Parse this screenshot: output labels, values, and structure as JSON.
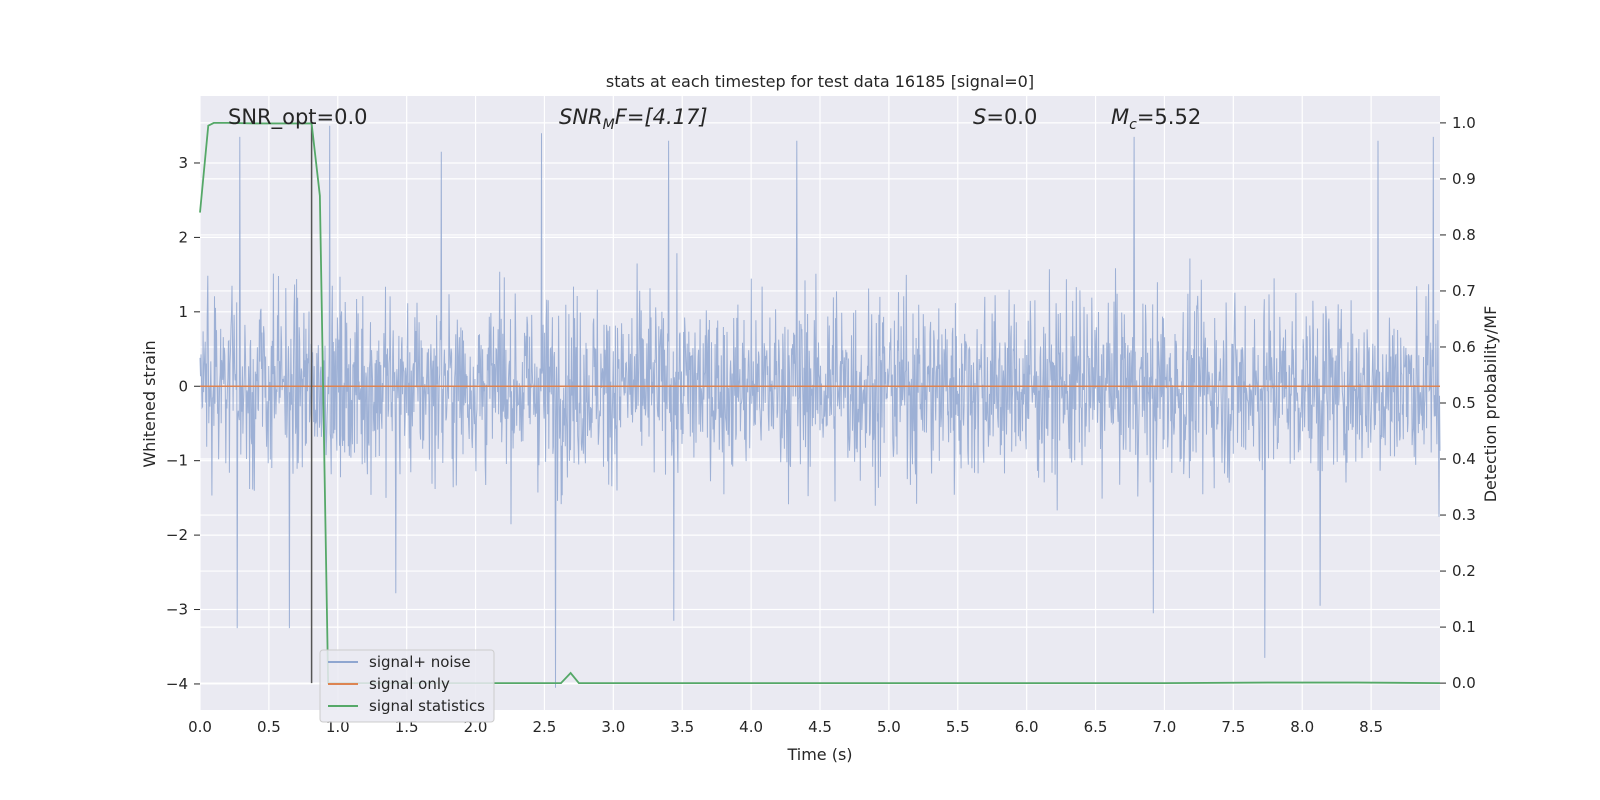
{
  "chart_data": {
    "type": "line",
    "title": "stats at each timestep for test data 16185 [signal=0]",
    "xlabel": "Time (s)",
    "ylabel": "Whitened strain",
    "ylabel_right": "Detection probability/MF",
    "xlim": [
      0.0,
      9.0
    ],
    "ylim": [
      -4.35,
      3.9
    ],
    "ylim_right": [
      -0.048,
      1.048
    ],
    "x_ticks": [
      "0.0",
      "0.5",
      "1.0",
      "1.5",
      "2.0",
      "2.5",
      "3.0",
      "3.5",
      "4.0",
      "4.5",
      "5.0",
      "5.5",
      "6.0",
      "6.5",
      "7.0",
      "7.5",
      "8.0",
      "8.5"
    ],
    "y_ticks": [
      "−4",
      "−3",
      "−2",
      "−1",
      "0",
      "1",
      "2",
      "3"
    ],
    "y_right_ticks": [
      "0.0",
      "0.1",
      "0.2",
      "0.3",
      "0.4",
      "0.5",
      "0.6",
      "0.7",
      "0.8",
      "0.9",
      "1.0"
    ],
    "grid": true,
    "legend_position": "lower-left",
    "annotations": {
      "snr_opt": "SNR_opt=0.0",
      "snr_mf_base": "SNR",
      "snr_mf_sub": "M",
      "snr_mf_rest": "F=[4.17]",
      "s_base": "S",
      "s_rest": "=0.0",
      "mc_base": "M",
      "mc_sub": "c",
      "mc_rest": "=5.52"
    },
    "vertical_marker_x": 0.81,
    "series": [
      {
        "name": "signal+ noise",
        "color": "#8fa6d0",
        "axis": "left",
        "description_range": [
          -4.0,
          3.5
        ],
        "peaks": [
          {
            "x": 0.29,
            "y": 3.35
          },
          {
            "x": 0.94,
            "y": 3.5
          },
          {
            "x": 1.75,
            "y": 3.15
          },
          {
            "x": 2.48,
            "y": 3.4
          },
          {
            "x": 3.4,
            "y": 3.3
          },
          {
            "x": 4.33,
            "y": 3.3
          },
          {
            "x": 6.78,
            "y": 3.35
          },
          {
            "x": 8.55,
            "y": 3.3
          },
          {
            "x": 8.95,
            "y": 3.35
          }
        ],
        "troughs": [
          {
            "x": 0.27,
            "y": -3.25
          },
          {
            "x": 0.65,
            "y": -3.25
          },
          {
            "x": 1.42,
            "y": -2.78
          },
          {
            "x": 2.58,
            "y": -4.05
          },
          {
            "x": 3.44,
            "y": -3.15
          },
          {
            "x": 6.92,
            "y": -3.05
          },
          {
            "x": 7.73,
            "y": -3.65
          },
          {
            "x": 8.13,
            "y": -2.95
          }
        ]
      },
      {
        "name": "signal only",
        "color": "#dd8452",
        "axis": "left",
        "x": [
          0.0,
          9.0
        ],
        "y": [
          0.0,
          0.0
        ]
      },
      {
        "name": "signal statistics",
        "color": "#55a868",
        "axis": "right",
        "x": [
          0.0,
          0.06,
          0.1,
          0.2,
          0.4,
          0.6,
          0.79,
          0.81,
          0.87,
          0.93,
          1.0,
          1.5,
          2.0,
          2.5,
          2.62,
          2.69,
          2.75,
          3.0,
          4.0,
          5.0,
          6.0,
          7.0,
          7.75,
          8.4,
          9.0
        ],
        "y": [
          0.84,
          0.995,
          1.0,
          1.0,
          0.999,
          0.999,
          0.999,
          0.999,
          0.87,
          0.0,
          0.0,
          0.0,
          0.0,
          0.0,
          0.0,
          0.018,
          0.0,
          0.0,
          0.0,
          0.0,
          0.0,
          0.0,
          0.001,
          0.001,
          0.0
        ]
      }
    ]
  }
}
